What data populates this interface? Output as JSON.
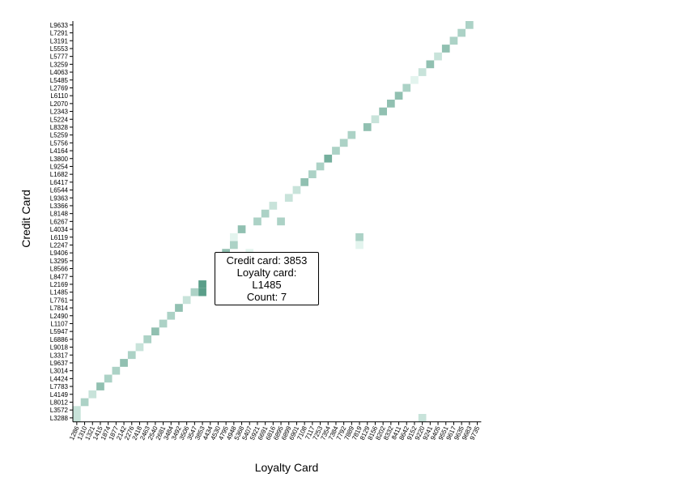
{
  "chart_data": {
    "type": "heatmap",
    "xlabel": "Loyalty Card",
    "ylabel": "Credit Card",
    "x_categories": [
      "1286",
      "1310",
      "1321",
      "1415",
      "1874",
      "1877",
      "2142",
      "2276",
      "2418",
      "2463",
      "2540",
      "2681",
      "3484",
      "3492",
      "3506",
      "3547",
      "3853",
      "4434",
      "4530",
      "4795",
      "4948",
      "5368",
      "5407",
      "5921",
      "6691",
      "6816",
      "6895",
      "6899",
      "6901",
      "7108",
      "7117",
      "7253",
      "7354",
      "7384",
      "7792",
      "7889",
      "7819",
      "8129",
      "8156",
      "8202",
      "8332",
      "8411",
      "8642",
      "9152",
      "9220",
      "9241",
      "9405",
      "9551",
      "9617",
      "9635",
      "9683",
      "9735"
    ],
    "y_categories": [
      "L9633",
      "L7291",
      "L3191",
      "L5553",
      "L5777",
      "L3259",
      "L4063",
      "L5485",
      "L2769",
      "L6110",
      "L2070",
      "L2343",
      "L5224",
      "L8328",
      "L5259",
      "L5756",
      "L4164",
      "L3800",
      "L9254",
      "L1682",
      "L6417",
      "L6544",
      "L9363",
      "L3366",
      "L8148",
      "L6267",
      "L4034",
      "L6119",
      "L2247",
      "L9406",
      "L3295",
      "L8566",
      "L8477",
      "L2169",
      "L1485",
      "L7761",
      "L7814",
      "L2490",
      "L1107",
      "L5947",
      "L6886",
      "L9018",
      "L3317",
      "L9637",
      "L3014",
      "L4424",
      "L7783",
      "L4149",
      "L8012",
      "L3572",
      "L3288"
    ],
    "cells": [
      {
        "x": "1286",
        "y": "L3288",
        "count": 3
      },
      {
        "x": "1286",
        "y": "L3572",
        "count": 3
      },
      {
        "x": "1310",
        "y": "L8012",
        "count": 4
      },
      {
        "x": "1321",
        "y": "L4149",
        "count": 3
      },
      {
        "x": "1415",
        "y": "L7783",
        "count": 5
      },
      {
        "x": "1874",
        "y": "L4424",
        "count": 4
      },
      {
        "x": "1877",
        "y": "L3014",
        "count": 4
      },
      {
        "x": "2142",
        "y": "L9637",
        "count": 5
      },
      {
        "x": "2276",
        "y": "L3317",
        "count": 4
      },
      {
        "x": "2418",
        "y": "L9018",
        "count": 3
      },
      {
        "x": "2463",
        "y": "L6886",
        "count": 4
      },
      {
        "x": "2540",
        "y": "L5947",
        "count": 5
      },
      {
        "x": "2681",
        "y": "L1107",
        "count": 4
      },
      {
        "x": "3484",
        "y": "L2490",
        "count": 4
      },
      {
        "x": "3492",
        "y": "L7814",
        "count": 5
      },
      {
        "x": "3506",
        "y": "L7761",
        "count": 3
      },
      {
        "x": "3547",
        "y": "L1485",
        "count": 4
      },
      {
        "x": "3853",
        "y": "L1485",
        "count": 7
      },
      {
        "x": "3853",
        "y": "L2169",
        "count": 7
      },
      {
        "x": "4795",
        "y": "L9406",
        "count": 5
      },
      {
        "x": "4948",
        "y": "L6119",
        "count": 2
      },
      {
        "x": "4948",
        "y": "L2247",
        "count": 4
      },
      {
        "x": "5368",
        "y": "L4034",
        "count": 5
      },
      {
        "x": "5407",
        "y": "L9406",
        "count": 2
      },
      {
        "x": "5921",
        "y": "L6267",
        "count": 4
      },
      {
        "x": "6691",
        "y": "L8148",
        "count": 4
      },
      {
        "x": "6816",
        "y": "L3366",
        "count": 3
      },
      {
        "x": "6895",
        "y": "L6267",
        "count": 4
      },
      {
        "x": "6899",
        "y": "L9363",
        "count": 3
      },
      {
        "x": "6901",
        "y": "L6544",
        "count": 3
      },
      {
        "x": "7108",
        "y": "L6417",
        "count": 5
      },
      {
        "x": "7117",
        "y": "L1682",
        "count": 4
      },
      {
        "x": "7253",
        "y": "L9254",
        "count": 4
      },
      {
        "x": "7354",
        "y": "L3800",
        "count": 6
      },
      {
        "x": "7384",
        "y": "L4164",
        "count": 4
      },
      {
        "x": "7792",
        "y": "L5756",
        "count": 4
      },
      {
        "x": "7889",
        "y": "L5259",
        "count": 4
      },
      {
        "x": "7819",
        "y": "L6119",
        "count": 4
      },
      {
        "x": "7819",
        "y": "L2247",
        "count": 2
      },
      {
        "x": "8129",
        "y": "L8328",
        "count": 5
      },
      {
        "x": "8156",
        "y": "L5224",
        "count": 3
      },
      {
        "x": "8202",
        "y": "L2343",
        "count": 5
      },
      {
        "x": "8332",
        "y": "L2070",
        "count": 5
      },
      {
        "x": "8411",
        "y": "L6110",
        "count": 5
      },
      {
        "x": "8642",
        "y": "L2769",
        "count": 4
      },
      {
        "x": "9152",
        "y": "L5485",
        "count": 2
      },
      {
        "x": "9220",
        "y": "L4063",
        "count": 3
      },
      {
        "x": "9220",
        "y": "L3288",
        "count": 3
      },
      {
        "x": "9241",
        "y": "L3259",
        "count": 5
      },
      {
        "x": "9405",
        "y": "L5777",
        "count": 3
      },
      {
        "x": "9551",
        "y": "L5553",
        "count": 5
      },
      {
        "x": "9617",
        "y": "L3191",
        "count": 4
      },
      {
        "x": "9635",
        "y": "L7291",
        "count": 4
      },
      {
        "x": "9683",
        "y": "L9633",
        "count": 4
      }
    ],
    "color_scale": {
      "low": "#e3f4ee",
      "high": "#5a9e89"
    },
    "tooltip": {
      "credit_line": "Credit card: 3853",
      "loyalty_line": "Loyalty card: L1485",
      "count_line": "Count: 7"
    }
  }
}
